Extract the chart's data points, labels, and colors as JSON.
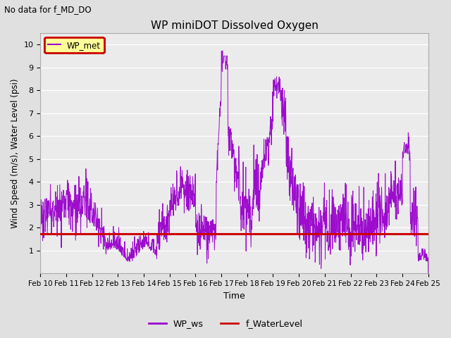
{
  "title": "WP miniDOT Dissolved Oxygen",
  "subtitle": "No data for f_MD_DO",
  "ylabel": "Wind Speed (m/s), Water Level (psi)",
  "xlabel": "Time",
  "ylim": [
    0.0,
    10.5
  ],
  "yticks": [
    1.0,
    2.0,
    3.0,
    4.0,
    5.0,
    6.0,
    7.0,
    8.0,
    9.0,
    10.0
  ],
  "legend_label1": "WP_ws",
  "legend_label2": "f_WaterLevel",
  "legend_box_label": "WP_met",
  "wp_ws_color": "#9900CC",
  "f_waterlevel_color": "#CC0000",
  "background_color": "#E0E0E0",
  "plot_bg_color": "#EBEBEB",
  "water_level_value": 1.73,
  "start_day": 10,
  "end_day": 25,
  "xtick_labels": [
    "Feb 10",
    "Feb 11",
    "Feb 12",
    "Feb 13",
    "Feb 14",
    "Feb 15",
    "Feb 16",
    "Feb 17",
    "Feb 18",
    "Feb 19",
    "Feb 20",
    "Feb 21",
    "Feb 22",
    "Feb 23",
    "Feb 24",
    "Feb 25"
  ]
}
